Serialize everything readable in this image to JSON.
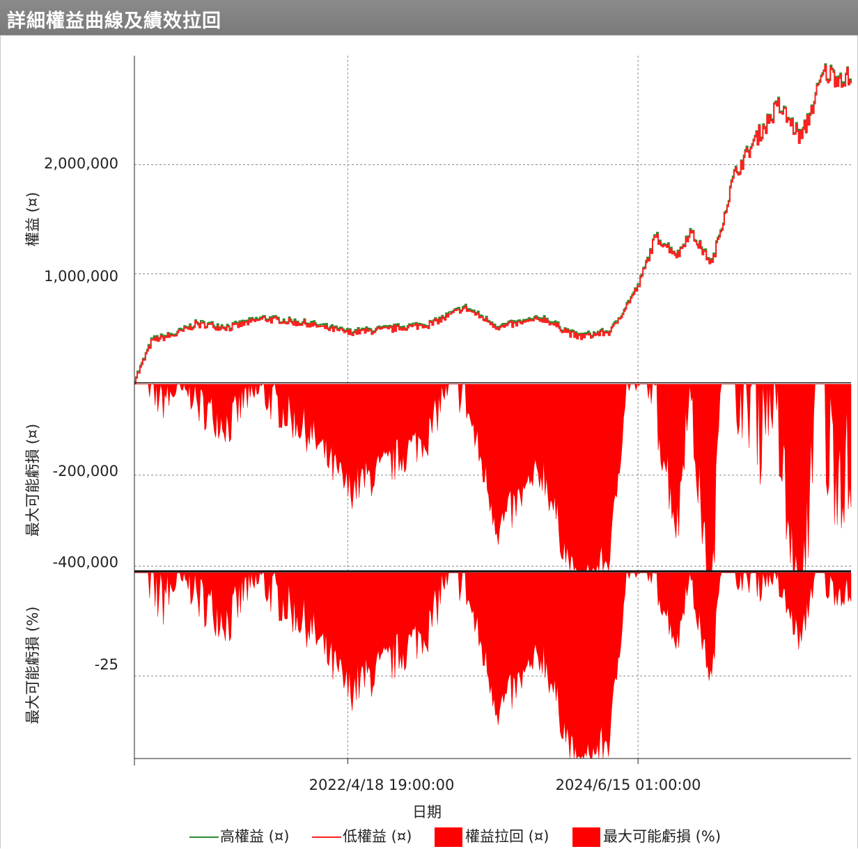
{
  "window": {
    "title": "詳細權益曲線及績效拉回"
  },
  "chart_data": [
    {
      "type": "line",
      "panel": "equity",
      "ylabel": "權益 (¤)",
      "yticks": [
        "2,000,000",
        "1,000,000"
      ],
      "ytick_values": [
        2000000,
        1000000
      ],
      "ylim": [
        0,
        3000000
      ],
      "x_dates": [
        "2020-09-15",
        "2020-10-01",
        "2020-11-01",
        "2021-01-01",
        "2021-03-01",
        "2021-06-01",
        "2021-09-01",
        "2022-01-01",
        "2022-04-18",
        "2022-08-01",
        "2022-12-01",
        "2023-03-01",
        "2023-06-01",
        "2023-10-01",
        "2024-01-01",
        "2024-04-01",
        "2024-06-15",
        "2024-08-01",
        "2024-10-01",
        "2024-11-01",
        "2025-01-01",
        "2025-03-01",
        "2025-05-01",
        "2025-07-01",
        "2025-09-01",
        "2025-11-01",
        "2026-01-15"
      ],
      "series": [
        {
          "name": "高權益 (¤)",
          "color": "#2e8b2e",
          "values": [
            40000,
            150000,
            400000,
            450000,
            550000,
            520000,
            600000,
            550000,
            470000,
            500000,
            550000,
            700000,
            520000,
            600000,
            430000,
            480000,
            900000,
            1350000,
            1180000,
            1400000,
            1100000,
            1900000,
            2250000,
            2550000,
            2250000,
            2850000,
            2800000
          ]
        },
        {
          "name": "低權益 (¤)",
          "color": "#ff2020",
          "values": [
            30000,
            140000,
            390000,
            440000,
            540000,
            510000,
            590000,
            540000,
            460000,
            490000,
            540000,
            690000,
            510000,
            590000,
            420000,
            470000,
            890000,
            1340000,
            1170000,
            1390000,
            1090000,
            1890000,
            2240000,
            2540000,
            2240000,
            2840000,
            2790000
          ]
        }
      ]
    },
    {
      "type": "area",
      "panel": "drawdown",
      "ylabel": "最大可能虧損 (¤)",
      "yticks": [
        "-200,000",
        "-400,000"
      ],
      "ytick_values": [
        -200000,
        -400000
      ],
      "ylim": [
        -410000,
        0
      ],
      "series": [
        {
          "name": "權益拉回 (¤)",
          "color": "#ff0000"
        }
      ]
    },
    {
      "type": "area",
      "panel": "drawdown_pct",
      "ylabel": "最大可能虧損 (%)",
      "yticks": [
        "-25"
      ],
      "ytick_values": [
        -25
      ],
      "ylim": [
        -45,
        0
      ],
      "series": [
        {
          "name": "最大可能虧損 (%)",
          "color": "#ff0000"
        }
      ]
    }
  ],
  "x_axis": {
    "label": "日期",
    "ticks": [
      "2022/4/18 19:00:00",
      "2024/6/15 01:00:00"
    ],
    "range": [
      "2020-09-15",
      "2026-01-15"
    ]
  },
  "legend": {
    "items": [
      {
        "label": "高權益 (¤)",
        "kind": "line",
        "color": "#2e8b2e"
      },
      {
        "label": "低權益 (¤)",
        "kind": "line",
        "color": "#ff2020"
      },
      {
        "label": "權益拉回 (¤)",
        "kind": "box",
        "color": "#ff0000"
      },
      {
        "label": "最大可能虧損 (%)",
        "kind": "box",
        "color": "#ff0000"
      }
    ]
  }
}
